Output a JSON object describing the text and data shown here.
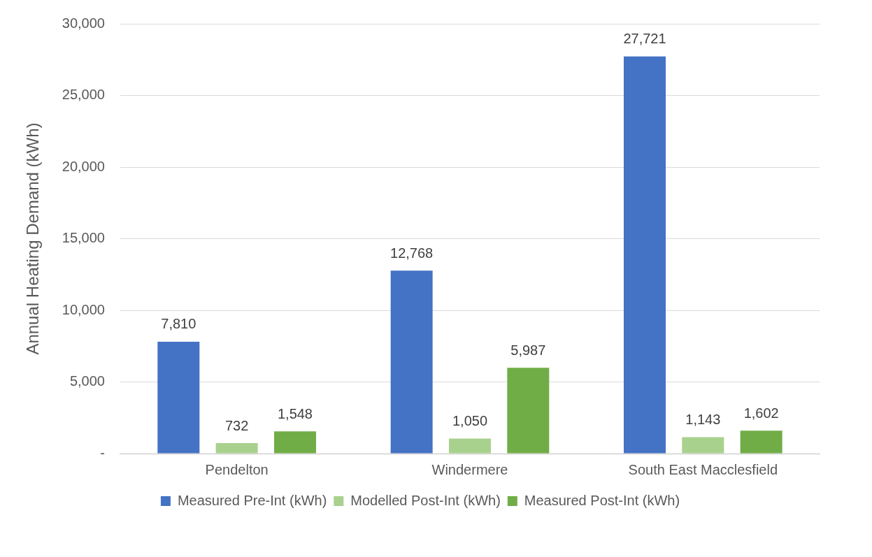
{
  "chart_data": {
    "type": "bar",
    "ylabel": "Annual Heating Demand (kWh)",
    "categories": [
      "Pendelton",
      "Windermere",
      "South East Macclesfield"
    ],
    "series": [
      {
        "name": "Measured Pre-Int (kWh)",
        "color": "#4472c4",
        "values": [
          7810,
          12768,
          27721
        ],
        "value_labels": [
          "7,810",
          "12,768",
          "27,721"
        ]
      },
      {
        "name": "Modelled Post-Int (kWh)",
        "color": "#a9d18e",
        "values": [
          732,
          1050,
          1143
        ],
        "value_labels": [
          "732",
          "1,050",
          "1,143"
        ]
      },
      {
        "name": "Measured Post-Int (kWh)",
        "color": "#70ad47",
        "values": [
          1548,
          5987,
          1602
        ],
        "value_labels": [
          "1,548",
          "5,987",
          "1,602"
        ]
      }
    ],
    "ylim": [
      0,
      30000
    ],
    "yticks": [
      {
        "value": 0,
        "label": "-"
      },
      {
        "value": 5000,
        "label": "5,000"
      },
      {
        "value": 10000,
        "label": "10,000"
      },
      {
        "value": 15000,
        "label": "15,000"
      },
      {
        "value": 20000,
        "label": "20,000"
      },
      {
        "value": 25000,
        "label": "25,000"
      },
      {
        "value": 30000,
        "label": "30,000"
      }
    ],
    "grid": "y",
    "legend": "bottom"
  }
}
